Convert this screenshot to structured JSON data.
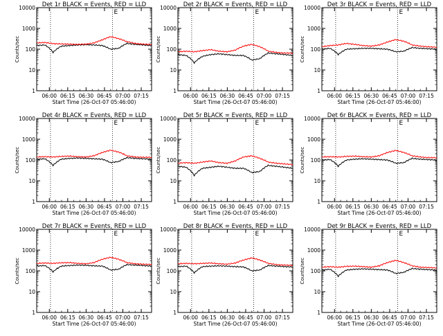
{
  "chart_data": [
    {
      "type": "line",
      "title": "Det 1r BLACK = Events, RED = LLD",
      "xlabel": "Start Time (26-Oct-07 05:46:00)",
      "ylabel": "Counts/sec",
      "yscale": "log",
      "ylim": [
        1,
        10000
      ],
      "y_tick_labels": [
        "1",
        "10",
        "100",
        "1000",
        "10000"
      ],
      "x_tick_labels": [
        "06:00",
        "06:15",
        "06:30",
        "06:45",
        "07:00",
        "07:15"
      ],
      "corner_label": "E",
      "grid": false,
      "series": [
        {
          "color": "#000000",
          "values": [
            150,
            160,
            70,
            140,
            150,
            160,
            165,
            160,
            150,
            100,
            110,
            190,
            170,
            160,
            150
          ]
        },
        {
          "color": "#ff0000",
          "values": [
            200,
            210,
            185,
            180,
            175,
            170,
            175,
            200,
            280,
            400,
            320,
            230,
            190,
            175,
            170
          ]
        }
      ]
    },
    {
      "type": "line",
      "title": "Det 2r BLACK = Events, RED = LLD",
      "xlabel": "Start Time (26-Oct-07 05:46:00)",
      "ylabel": "Counts/sec",
      "yscale": "log",
      "ylim": [
        1,
        10000
      ],
      "y_tick_labels": [
        "1",
        "10",
        "100",
        "1000",
        "10000"
      ],
      "x_tick_labels": [
        "06:00",
        "06:15",
        "06:30",
        "06:45",
        "07:00",
        "07:15"
      ],
      "corner_label": "E",
      "grid": false,
      "series": [
        {
          "color": "#000000",
          "values": [
            55,
            50,
            22,
            45,
            55,
            60,
            55,
            50,
            50,
            30,
            35,
            65,
            60,
            55,
            50
          ]
        },
        {
          "color": "#ff0000",
          "values": [
            75,
            80,
            75,
            85,
            95,
            80,
            75,
            90,
            140,
            170,
            130,
            80,
            70,
            65,
            65
          ]
        }
      ]
    },
    {
      "type": "line",
      "title": "Det 3r BLACK = Events, RED = LLD",
      "xlabel": "Start Time (26-Oct-07 05:46:00)",
      "ylabel": "Counts/sec",
      "yscale": "log",
      "ylim": [
        1,
        10000
      ],
      "y_tick_labels": [
        "1",
        "10",
        "100",
        "1000",
        "10000"
      ],
      "x_tick_labels": [
        "06:00",
        "06:15",
        "06:30",
        "06:45",
        "07:00",
        "07:15"
      ],
      "corner_label": "E",
      "grid": false,
      "series": [
        {
          "color": "#000000",
          "values": [
            100,
            110,
            55,
            100,
            105,
            110,
            110,
            105,
            100,
            75,
            80,
            120,
            110,
            105,
            100
          ]
        },
        {
          "color": "#ff0000",
          "values": [
            130,
            150,
            160,
            190,
            170,
            150,
            140,
            160,
            220,
            290,
            240,
            160,
            140,
            130,
            125
          ]
        }
      ]
    },
    {
      "type": "line",
      "title": "Det 4r BLACK = Events, RED = LLD",
      "xlabel": "Start Time (26-Oct-07 05:46:00)",
      "ylabel": "Counts/sec",
      "yscale": "log",
      "ylim": [
        1,
        10000
      ],
      "y_tick_labels": [
        "1",
        "10",
        "100",
        "1000",
        "10000"
      ],
      "x_tick_labels": [
        "06:00",
        "06:15",
        "06:30",
        "06:45",
        "07:00",
        "07:15"
      ],
      "corner_label": "E",
      "grid": false,
      "series": [
        {
          "color": "#000000",
          "values": [
            110,
            115,
            55,
            110,
            120,
            125,
            120,
            115,
            110,
            75,
            85,
            130,
            120,
            115,
            110
          ]
        },
        {
          "color": "#ff0000",
          "values": [
            140,
            145,
            140,
            150,
            155,
            145,
            140,
            160,
            230,
            300,
            240,
            160,
            140,
            135,
            135
          ]
        }
      ]
    },
    {
      "type": "line",
      "title": "Det 5r BLACK = Events, RED = LLD",
      "xlabel": "Start Time (26-Oct-07 05:46:00)",
      "ylabel": "Counts/sec",
      "yscale": "log",
      "ylim": [
        1,
        10000
      ],
      "y_tick_labels": [
        "1",
        "10",
        "100",
        "1000",
        "10000"
      ],
      "x_tick_labels": [
        "06:00",
        "06:15",
        "06:30",
        "06:45",
        "07:00",
        "07:15"
      ],
      "corner_label": "E",
      "grid": false,
      "series": [
        {
          "color": "#000000",
          "values": [
            50,
            45,
            18,
            40,
            45,
            50,
            45,
            40,
            40,
            25,
            28,
            55,
            50,
            45,
            40
          ]
        },
        {
          "color": "#ff0000",
          "values": [
            70,
            75,
            70,
            80,
            90,
            75,
            70,
            90,
            140,
            160,
            120,
            80,
            70,
            65,
            60
          ]
        }
      ]
    },
    {
      "type": "line",
      "title": "Det 6r BLACK = Events, RED = LLD",
      "xlabel": "Start Time (26-Oct-07 05:46:00)",
      "ylabel": "Counts/sec",
      "yscale": "log",
      "ylim": [
        1,
        10000
      ],
      "y_tick_labels": [
        "1",
        "10",
        "100",
        "1000",
        "10000"
      ],
      "x_tick_labels": [
        "06:00",
        "06:15",
        "06:30",
        "06:45",
        "07:00",
        "07:15"
      ],
      "corner_label": "E",
      "grid": false,
      "series": [
        {
          "color": "#000000",
          "values": [
            100,
            105,
            50,
            100,
            110,
            115,
            110,
            105,
            100,
            70,
            75,
            120,
            110,
            105,
            100
          ]
        },
        {
          "color": "#ff0000",
          "values": [
            140,
            145,
            140,
            150,
            155,
            145,
            140,
            160,
            230,
            290,
            230,
            160,
            140,
            130,
            130
          ]
        }
      ]
    },
    {
      "type": "line",
      "title": "Det 7r BLACK = Events, RED = LLD",
      "xlabel": "Start Time (26-Oct-07 05:46:00)",
      "ylabel": "Counts/sec",
      "yscale": "log",
      "ylim": [
        1,
        10000
      ],
      "y_tick_labels": [
        "1",
        "10",
        "100",
        "1000",
        "10000"
      ],
      "x_tick_labels": [
        "06:00",
        "06:15",
        "06:30",
        "06:45",
        "07:00",
        "07:15"
      ],
      "corner_label": "E",
      "grid": false,
      "series": [
        {
          "color": "#000000",
          "values": [
            170,
            180,
            90,
            170,
            180,
            190,
            185,
            175,
            170,
            110,
            120,
            200,
            190,
            180,
            170
          ]
        },
        {
          "color": "#ff0000",
          "values": [
            230,
            240,
            230,
            245,
            250,
            230,
            220,
            250,
            360,
            450,
            360,
            250,
            220,
            210,
            205
          ]
        }
      ]
    },
    {
      "type": "line",
      "title": "Det 8r BLACK = Events, RED = LLD",
      "xlabel": "Start Time (26-Oct-07 05:46:00)",
      "ylabel": "Counts/sec",
      "yscale": "log",
      "ylim": [
        1,
        10000
      ],
      "y_tick_labels": [
        "1",
        "10",
        "100",
        "1000",
        "10000"
      ],
      "x_tick_labels": [
        "06:00",
        "06:15",
        "06:30",
        "06:45",
        "07:00",
        "07:15"
      ],
      "corner_label": "E",
      "grid": false,
      "series": [
        {
          "color": "#000000",
          "values": [
            160,
            170,
            80,
            160,
            170,
            175,
            170,
            160,
            155,
            100,
            110,
            180,
            170,
            160,
            155
          ]
        },
        {
          "color": "#ff0000",
          "values": [
            220,
            230,
            220,
            230,
            240,
            220,
            210,
            240,
            330,
            420,
            330,
            230,
            200,
            190,
            185
          ]
        }
      ]
    },
    {
      "type": "line",
      "title": "Det 9r BLACK = Events, RED = LLD",
      "xlabel": "Start Time (26-Oct-07 05:46:00)",
      "ylabel": "Counts/sec",
      "yscale": "log",
      "ylim": [
        1,
        10000
      ],
      "y_tick_labels": [
        "1",
        "10",
        "100",
        "1000",
        "10000"
      ],
      "x_tick_labels": [
        "06:00",
        "06:15",
        "06:30",
        "06:45",
        "07:00",
        "07:15"
      ],
      "corner_label": "E",
      "grid": false,
      "series": [
        {
          "color": "#000000",
          "values": [
            110,
            120,
            55,
            110,
            120,
            125,
            120,
            115,
            110,
            75,
            85,
            130,
            120,
            115,
            110
          ]
        },
        {
          "color": "#ff0000",
          "values": [
            150,
            160,
            150,
            165,
            170,
            160,
            150,
            175,
            250,
            320,
            250,
            175,
            150,
            145,
            140
          ]
        }
      ]
    }
  ]
}
